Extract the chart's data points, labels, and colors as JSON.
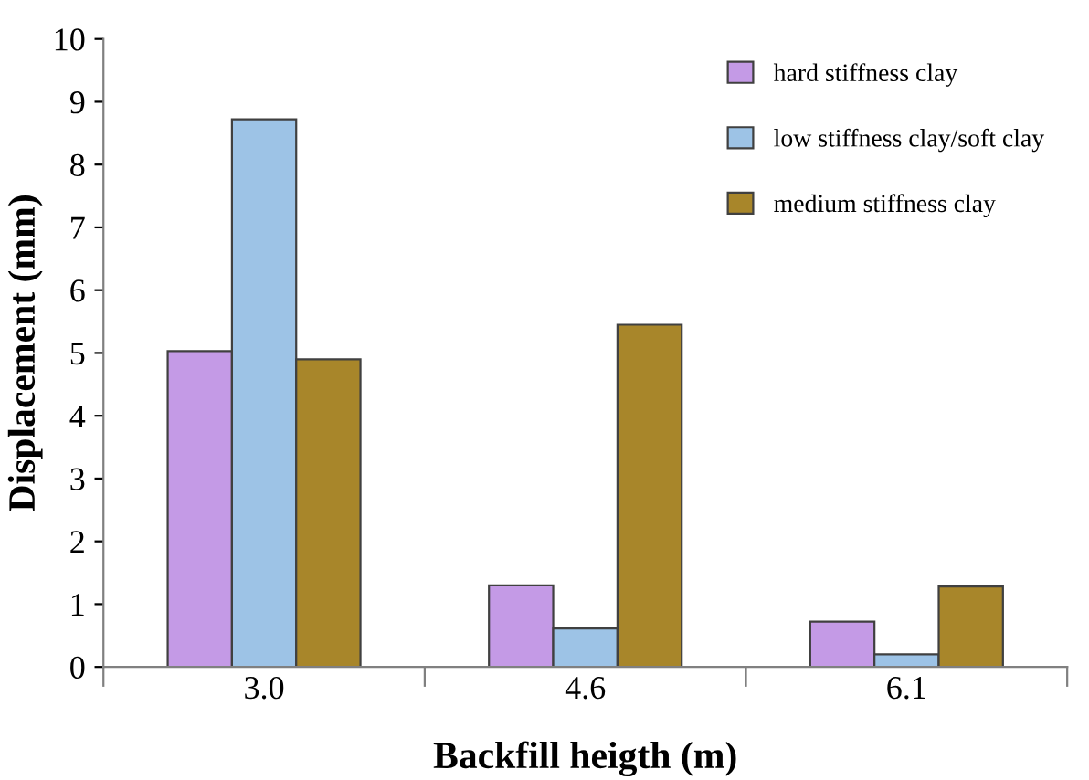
{
  "chart_data": {
    "type": "bar",
    "xlabel": "Backfill heigth (m)",
    "ylabel": "Displacement (mm)",
    "categories": [
      "3.0",
      "4.6",
      "6.1"
    ],
    "series": [
      {
        "name": "hard stiffness clay",
        "color": "#c49ae6",
        "values": [
          5.03,
          1.3,
          0.72
        ]
      },
      {
        "name": "low stiffness clay/soft clay",
        "color": "#9dc3e6",
        "values": [
          8.72,
          0.61,
          0.2
        ]
      },
      {
        "name": "medium stiffness clay",
        "color": "#a8862a",
        "values": [
          4.9,
          5.45,
          1.28
        ]
      }
    ],
    "ylim": [
      0,
      10
    ],
    "yticks": [
      0,
      1,
      2,
      3,
      4,
      5,
      6,
      7,
      8,
      9,
      10
    ],
    "grid": false,
    "legend": "top right"
  }
}
